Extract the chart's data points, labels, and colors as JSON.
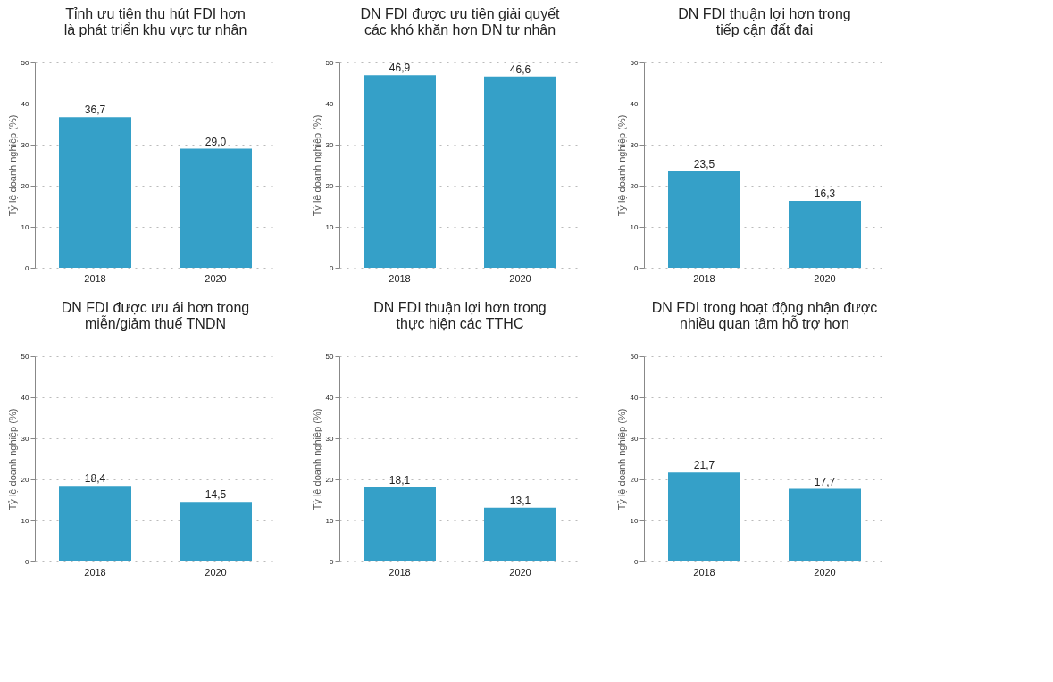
{
  "chart_data": [
    {
      "type": "bar",
      "title": "Tỉnh ưu tiên thu hút FDI hơn\nlà phát triển khu vực tư nhân",
      "ylabel": "Tỷ lệ doanh nghiệp (%)",
      "categories": [
        "2018",
        "2020"
      ],
      "values": [
        36.7,
        29.0
      ],
      "value_labels": [
        "36,7",
        "29,0"
      ],
      "color": "#35a0c8",
      "ylim": [
        0,
        50
      ],
      "yticks": [
        0,
        10,
        20,
        30,
        40,
        50
      ],
      "grid": "y"
    },
    {
      "type": "bar",
      "title": "DN FDI được ưu tiên giải quyết\ncác khó khăn hơn DN tư nhân",
      "ylabel": "Tỷ lệ doanh nghiệp (%)",
      "categories": [
        "2018",
        "2020"
      ],
      "values": [
        46.9,
        46.6
      ],
      "value_labels": [
        "46,9",
        "46,6"
      ],
      "color": "#35a0c8",
      "ylim": [
        0,
        50
      ],
      "yticks": [
        0,
        10,
        20,
        30,
        40,
        50
      ],
      "grid": "y"
    },
    {
      "type": "bar",
      "title": "DN FDI thuận lợi hơn trong\ntiếp cận đất đai",
      "ylabel": "Tỷ lệ doanh nghiệp (%)",
      "categories": [
        "2018",
        "2020"
      ],
      "values": [
        23.5,
        16.3
      ],
      "value_labels": [
        "23,5",
        "16,3"
      ],
      "color": "#35a0c8",
      "ylim": [
        0,
        50
      ],
      "yticks": [
        0,
        10,
        20,
        30,
        40,
        50
      ],
      "grid": "y"
    },
    {
      "type": "bar",
      "title": "DN FDI được ưu ái hơn trong\nmiễn/giảm thuế TNDN",
      "ylabel": "Tỷ lệ doanh nghiệp (%)",
      "categories": [
        "2018",
        "2020"
      ],
      "values": [
        18.4,
        14.5
      ],
      "value_labels": [
        "18,4",
        "14,5"
      ],
      "color": "#35a0c8",
      "ylim": [
        0,
        50
      ],
      "yticks": [
        0,
        10,
        20,
        30,
        40,
        50
      ],
      "grid": "y"
    },
    {
      "type": "bar",
      "title": "DN FDI thuận lợi hơn trong\nthực hiện các TTHC",
      "ylabel": "Tỷ lệ doanh nghiệp (%)",
      "categories": [
        "2018",
        "2020"
      ],
      "values": [
        18.1,
        13.1
      ],
      "value_labels": [
        "18,1",
        "13,1"
      ],
      "color": "#35a0c8",
      "ylim": [
        0,
        50
      ],
      "yticks": [
        0,
        10,
        20,
        30,
        40,
        50
      ],
      "grid": "y"
    },
    {
      "type": "bar",
      "title": "DN FDI trong hoạt động nhận được\nnhiều quan tâm hỗ trợ hơn",
      "ylabel": "Tỷ lệ doanh nghiệp (%)",
      "categories": [
        "2018",
        "2020"
      ],
      "values": [
        21.7,
        17.7
      ],
      "value_labels": [
        "21,7",
        "17,7"
      ],
      "color": "#35a0c8",
      "ylim": [
        0,
        50
      ],
      "yticks": [
        0,
        10,
        20,
        30,
        40,
        50
      ],
      "grid": "y"
    }
  ]
}
